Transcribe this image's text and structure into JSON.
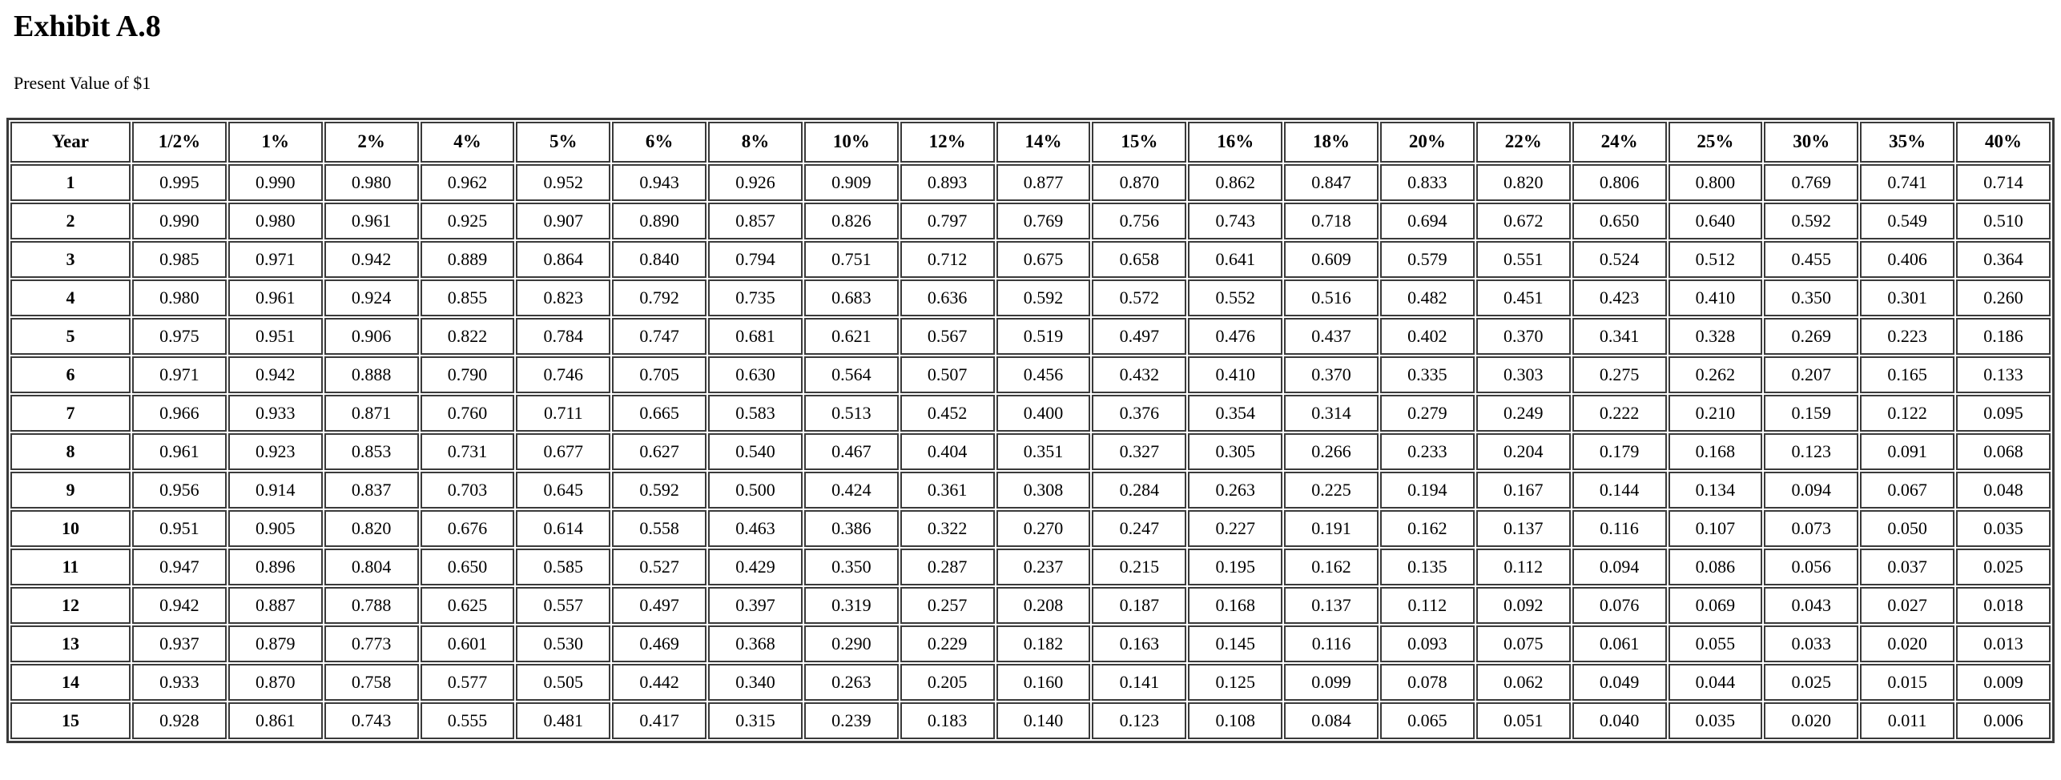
{
  "page": {
    "title": "Exhibit A.8",
    "subtitle": "Present Value of $1"
  },
  "table": {
    "columns": [
      "Year",
      "1/2%",
      "1%",
      "2%",
      "4%",
      "5%",
      "6%",
      "8%",
      "10%",
      "12%",
      "14%",
      "15%",
      "16%",
      "18%",
      "20%",
      "22%",
      "24%",
      "25%",
      "30%",
      "35%",
      "40%"
    ],
    "rows": [
      {
        "year": "1",
        "values": [
          "0.995",
          "0.990",
          "0.980",
          "0.962",
          "0.952",
          "0.943",
          "0.926",
          "0.909",
          "0.893",
          "0.877",
          "0.870",
          "0.862",
          "0.847",
          "0.833",
          "0.820",
          "0.806",
          "0.800",
          "0.769",
          "0.741",
          "0.714"
        ]
      },
      {
        "year": "2",
        "values": [
          "0.990",
          "0.980",
          "0.961",
          "0.925",
          "0.907",
          "0.890",
          "0.857",
          "0.826",
          "0.797",
          "0.769",
          "0.756",
          "0.743",
          "0.718",
          "0.694",
          "0.672",
          "0.650",
          "0.640",
          "0.592",
          "0.549",
          "0.510"
        ]
      },
      {
        "year": "3",
        "values": [
          "0.985",
          "0.971",
          "0.942",
          "0.889",
          "0.864",
          "0.840",
          "0.794",
          "0.751",
          "0.712",
          "0.675",
          "0.658",
          "0.641",
          "0.609",
          "0.579",
          "0.551",
          "0.524",
          "0.512",
          "0.455",
          "0.406",
          "0.364"
        ]
      },
      {
        "year": "4",
        "values": [
          "0.980",
          "0.961",
          "0.924",
          "0.855",
          "0.823",
          "0.792",
          "0.735",
          "0.683",
          "0.636",
          "0.592",
          "0.572",
          "0.552",
          "0.516",
          "0.482",
          "0.451",
          "0.423",
          "0.410",
          "0.350",
          "0.301",
          "0.260"
        ]
      },
      {
        "year": "5",
        "values": [
          "0.975",
          "0.951",
          "0.906",
          "0.822",
          "0.784",
          "0.747",
          "0.681",
          "0.621",
          "0.567",
          "0.519",
          "0.497",
          "0.476",
          "0.437",
          "0.402",
          "0.370",
          "0.341",
          "0.328",
          "0.269",
          "0.223",
          "0.186"
        ]
      },
      {
        "year": "6",
        "values": [
          "0.971",
          "0.942",
          "0.888",
          "0.790",
          "0.746",
          "0.705",
          "0.630",
          "0.564",
          "0.507",
          "0.456",
          "0.432",
          "0.410",
          "0.370",
          "0.335",
          "0.303",
          "0.275",
          "0.262",
          "0.207",
          "0.165",
          "0.133"
        ]
      },
      {
        "year": "7",
        "values": [
          "0.966",
          "0.933",
          "0.871",
          "0.760",
          "0.711",
          "0.665",
          "0.583",
          "0.513",
          "0.452",
          "0.400",
          "0.376",
          "0.354",
          "0.314",
          "0.279",
          "0.249",
          "0.222",
          "0.210",
          "0.159",
          "0.122",
          "0.095"
        ]
      },
      {
        "year": "8",
        "values": [
          "0.961",
          "0.923",
          "0.853",
          "0.731",
          "0.677",
          "0.627",
          "0.540",
          "0.467",
          "0.404",
          "0.351",
          "0.327",
          "0.305",
          "0.266",
          "0.233",
          "0.204",
          "0.179",
          "0.168",
          "0.123",
          "0.091",
          "0.068"
        ]
      },
      {
        "year": "9",
        "values": [
          "0.956",
          "0.914",
          "0.837",
          "0.703",
          "0.645",
          "0.592",
          "0.500",
          "0.424",
          "0.361",
          "0.308",
          "0.284",
          "0.263",
          "0.225",
          "0.194",
          "0.167",
          "0.144",
          "0.134",
          "0.094",
          "0.067",
          "0.048"
        ]
      },
      {
        "year": "10",
        "values": [
          "0.951",
          "0.905",
          "0.820",
          "0.676",
          "0.614",
          "0.558",
          "0.463",
          "0.386",
          "0.322",
          "0.270",
          "0.247",
          "0.227",
          "0.191",
          "0.162",
          "0.137",
          "0.116",
          "0.107",
          "0.073",
          "0.050",
          "0.035"
        ]
      },
      {
        "year": "11",
        "values": [
          "0.947",
          "0.896",
          "0.804",
          "0.650",
          "0.585",
          "0.527",
          "0.429",
          "0.350",
          "0.287",
          "0.237",
          "0.215",
          "0.195",
          "0.162",
          "0.135",
          "0.112",
          "0.094",
          "0.086",
          "0.056",
          "0.037",
          "0.025"
        ]
      },
      {
        "year": "12",
        "values": [
          "0.942",
          "0.887",
          "0.788",
          "0.625",
          "0.557",
          "0.497",
          "0.397",
          "0.319",
          "0.257",
          "0.208",
          "0.187",
          "0.168",
          "0.137",
          "0.112",
          "0.092",
          "0.076",
          "0.069",
          "0.043",
          "0.027",
          "0.018"
        ]
      },
      {
        "year": "13",
        "values": [
          "0.937",
          "0.879",
          "0.773",
          "0.601",
          "0.530",
          "0.469",
          "0.368",
          "0.290",
          "0.229",
          "0.182",
          "0.163",
          "0.145",
          "0.116",
          "0.093",
          "0.075",
          "0.061",
          "0.055",
          "0.033",
          "0.020",
          "0.013"
        ]
      },
      {
        "year": "14",
        "values": [
          "0.933",
          "0.870",
          "0.758",
          "0.577",
          "0.505",
          "0.442",
          "0.340",
          "0.263",
          "0.205",
          "0.160",
          "0.141",
          "0.125",
          "0.099",
          "0.078",
          "0.062",
          "0.049",
          "0.044",
          "0.025",
          "0.015",
          "0.009"
        ]
      },
      {
        "year": "15",
        "values": [
          "0.928",
          "0.861",
          "0.743",
          "0.555",
          "0.481",
          "0.417",
          "0.315",
          "0.239",
          "0.183",
          "0.140",
          "0.123",
          "0.108",
          "0.084",
          "0.065",
          "0.051",
          "0.040",
          "0.035",
          "0.020",
          "0.011",
          "0.006"
        ]
      }
    ]
  }
}
